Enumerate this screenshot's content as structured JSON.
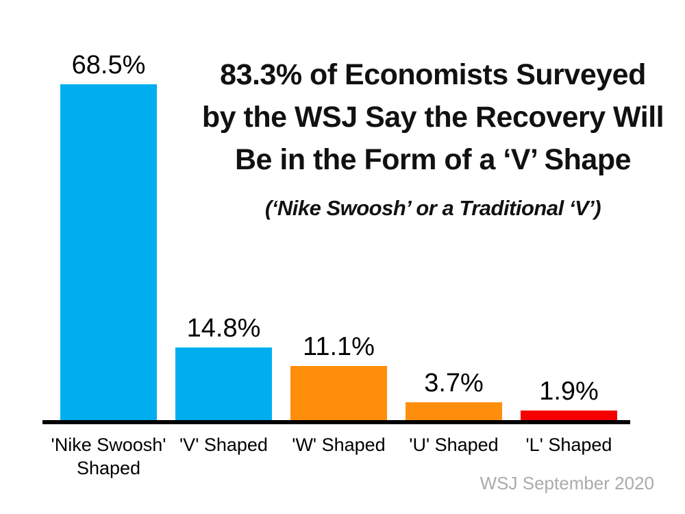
{
  "chart_data": {
    "type": "bar",
    "title_lines": [
      "83.3% of Economists Surveyed",
      "by the WSJ Say the Recovery Will",
      "Be in the Form of a ‘V’ Shape"
    ],
    "title": "83.3% of Economists Surveyed by the WSJ Say the Recovery Will Be in the Form of a ‘V’ Shape",
    "subtitle": "(‘Nike Swoosh’ or a Traditional ‘V’)",
    "categories": [
      "'Nike Swoosh' Shaped",
      "'V' Shaped",
      "'W' Shaped",
      "'U' Shaped",
      "'L' Shaped"
    ],
    "values": [
      68.5,
      14.8,
      11.1,
      3.7,
      1.9
    ],
    "value_labels": [
      "68.5%",
      "14.8%",
      "11.1%",
      "3.7%",
      "1.9%"
    ],
    "bar_colors": [
      "#00AEEF",
      "#00AEEF",
      "#FF8E0D",
      "#FF8E0D",
      "#F50000"
    ],
    "ylim": [
      0,
      70
    ],
    "grid": false,
    "legend": false,
    "xlabel": "",
    "ylabel": "",
    "source": "WSJ September 2020"
  },
  "colors": {
    "background": "#FFFFFF",
    "axis": "#000000",
    "title_text": "#111111",
    "label_text": "#000000",
    "source_text": "#ABABAB",
    "blue": "#00AEEF",
    "orange": "#FF8E0D",
    "red": "#F50000"
  }
}
